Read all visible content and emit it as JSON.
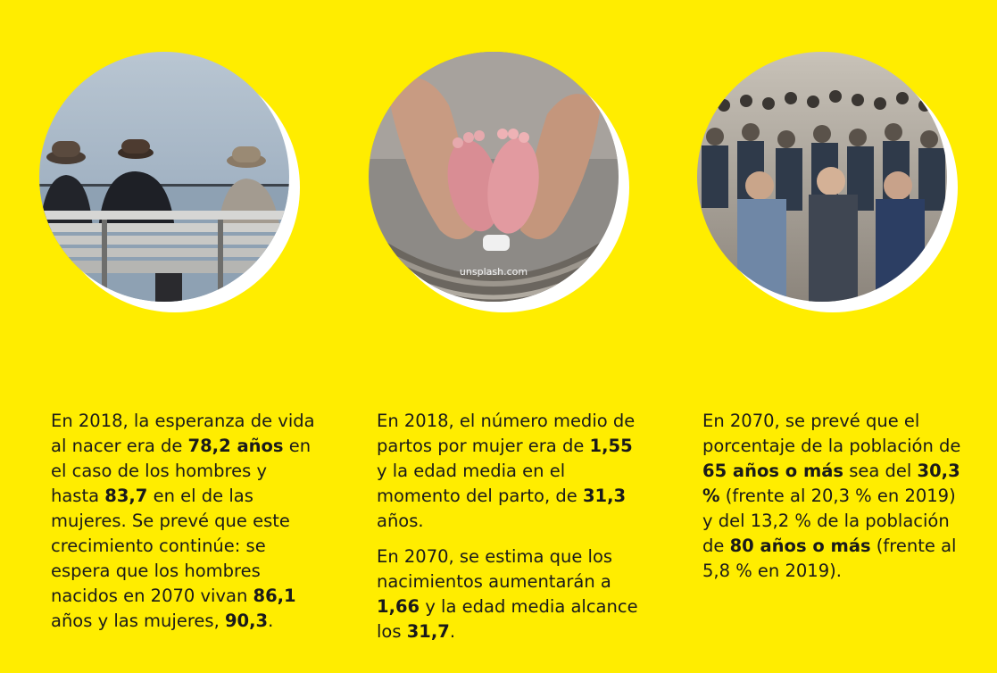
{
  "photos": {
    "elderly": {
      "icon": "elderly-people-on-bench-photo"
    },
    "baby": {
      "icon": "baby-feet-in-hands-photo",
      "watermark": "unsplash.com"
    },
    "crowd": {
      "icon": "crowd-on-street-photo"
    }
  },
  "col1": {
    "t1": "En 2018, la esperanza de vida al nacer era de ",
    "b1": "78,2 años",
    "t2": " en el caso de los hombres y hasta ",
    "b2": "83,7",
    "t3": " en el de las mujeres. Se prevé que este crecimiento continúe: se espera que los hombres nacidos en 2070 vivan ",
    "b3": "86,1",
    "t4": " años y las mujeres, ",
    "b4": "90,3",
    "t5": "."
  },
  "col2": {
    "p1": {
      "t1": "En 2018, el número medio de partos por mujer era de ",
      "b1": "1,55",
      "t2": " y la edad media en el momento del parto, de ",
      "b2": "31,3",
      "t3": " años."
    },
    "p2": {
      "t1": "En 2070, se estima que los nacimientos aumentarán a ",
      "b1": "1,66",
      "t2": " y la edad media alcance los ",
      "b2": "31,7",
      "t3": "."
    }
  },
  "col3": {
    "t1": "En 2070, se prevé que el porcentaje de la población de ",
    "b1": "65 años o más",
    "t2": " sea del ",
    "b2": "30,3 %",
    "t3": " (frente al 20,3 % en 2019) y del 13,2 % de la población de ",
    "b3": "80 años o más",
    "t4": " (frente al 5,8 % en 2019)."
  }
}
